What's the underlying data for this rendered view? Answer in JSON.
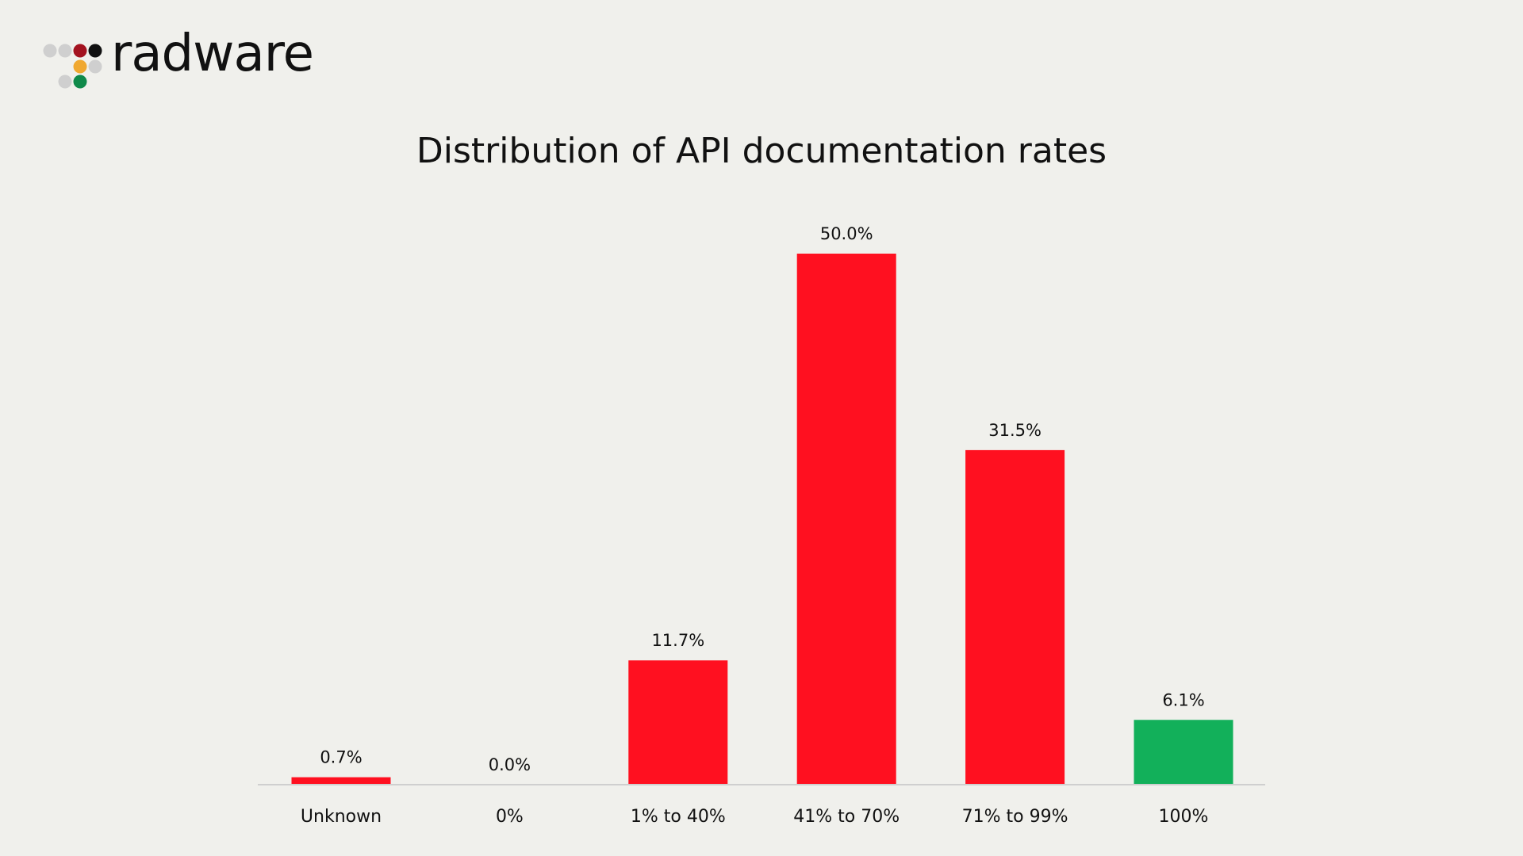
{
  "brand": {
    "name": "radware",
    "dot_colors": [
      "#cfcfcf",
      "#cfcfcf",
      "#a3121f",
      "#111111",
      "#f0a830",
      "#cfcfcf",
      "#cfcfcf",
      "#0f8a4a"
    ]
  },
  "chart_data": {
    "type": "bar",
    "title": "Distribution of API documentation rates",
    "xlabel": "",
    "ylabel": "",
    "categories": [
      "Unknown",
      "0%",
      "1% to 40%",
      "41% to 70%",
      "71% to 99%",
      "100%"
    ],
    "values": [
      0.7,
      0.0,
      11.7,
      50.0,
      31.5,
      6.1
    ],
    "value_labels": [
      "0.7%",
      "0.0%",
      "11.7%",
      "50.0%",
      "31.5%",
      "6.1%"
    ],
    "bar_colors": [
      "#ff1020",
      "#ff1020",
      "#ff1020",
      "#ff1020",
      "#ff1020",
      "#12b05a"
    ],
    "ylim": [
      0,
      50
    ],
    "grid": false,
    "legend": "none"
  }
}
